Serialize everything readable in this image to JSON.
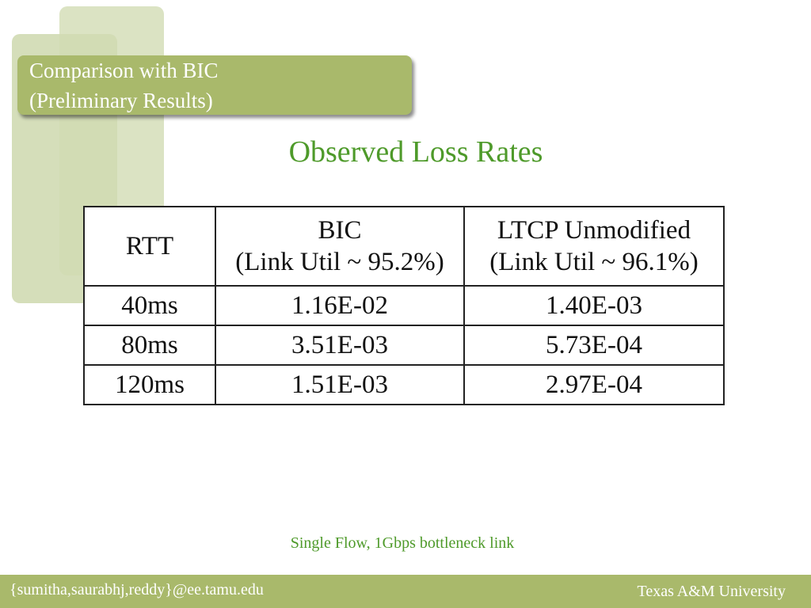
{
  "header": {
    "title_lines": [
      "Comparison with BIC",
      "(Preliminary Results)"
    ]
  },
  "subtitle": "Observed Loss Rates",
  "table": {
    "header": [
      [
        "RTT"
      ],
      [
        "BIC",
        "(Link Util ~ 95.2%)"
      ],
      [
        "LTCP Unmodified",
        "(Link Util ~ 96.1%)"
      ]
    ],
    "rows": [
      [
        "40ms",
        "1.16E-02",
        "1.40E-03"
      ],
      [
        "80ms",
        "3.51E-03",
        "5.73E-04"
      ],
      [
        "120ms",
        "1.51E-03",
        "2.97E-04"
      ]
    ]
  },
  "caption": "Single Flow, 1Gbps bottleneck link",
  "footer": {
    "left": "{sumitha,saurabhj,reddy}@ee.tamu.edu",
    "right": "Texas A&M University"
  }
}
